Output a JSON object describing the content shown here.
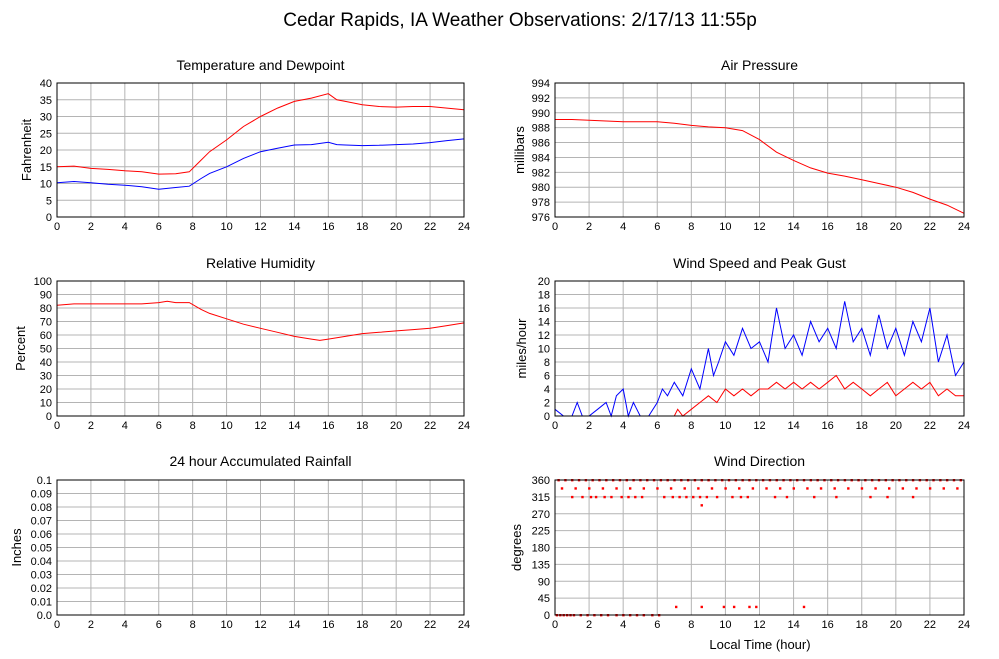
{
  "title": "Cedar Rapids, IA Weather Observations: 2/17/13 11:55p",
  "x_axis_label": "Local Time (hour)",
  "colors": {
    "red": "#ff0000",
    "blue": "#0000ff",
    "grid": "#b4b4b4",
    "frame": "#000000"
  },
  "chart_data": [
    {
      "id": "temperature",
      "type": "line",
      "title": "Temperature and Dewpoint",
      "xlabel": "",
      "ylabel": "Fahrenheit",
      "xlim": [
        0,
        24
      ],
      "ylim": [
        0,
        40
      ],
      "x_ticks": [
        0,
        2,
        4,
        6,
        8,
        10,
        12,
        14,
        16,
        18,
        20,
        22,
        24
      ],
      "y_ticks": [
        0,
        5,
        10,
        15,
        20,
        25,
        30,
        35,
        40
      ],
      "series": [
        {
          "color": "#ff0000",
          "x": [
            0,
            1,
            2,
            3,
            4,
            5,
            6,
            7,
            7.8,
            8.5,
            9,
            10,
            11,
            12,
            13,
            14,
            15,
            16,
            16.5,
            17,
            18,
            19,
            20,
            21,
            22,
            23,
            24
          ],
          "values": [
            15,
            15.2,
            14.5,
            14.2,
            13.8,
            13.5,
            12.8,
            12.9,
            13.5,
            17,
            19.5,
            23,
            27,
            30,
            32.5,
            34.5,
            35.5,
            36.8,
            35,
            34.5,
            33.5,
            33,
            32.8,
            33,
            33,
            32.5,
            32
          ]
        },
        {
          "color": "#0000ff",
          "x": [
            0,
            1,
            2,
            3,
            4,
            5,
            6,
            7,
            7.8,
            8.5,
            9,
            10,
            11,
            12,
            13,
            14,
            15,
            16,
            16.5,
            17,
            18,
            19,
            20,
            21,
            22,
            23,
            24
          ],
          "values": [
            10.2,
            10.6,
            10.2,
            9.8,
            9.5,
            9,
            8.3,
            8.8,
            9.2,
            11.5,
            13,
            15,
            17.5,
            19.5,
            20.5,
            21.5,
            21.6,
            22.3,
            21.6,
            21.5,
            21.3,
            21.4,
            21.6,
            21.8,
            22.2,
            22.8,
            23.3
          ]
        }
      ]
    },
    {
      "id": "pressure",
      "type": "line",
      "title": "Air Pressure",
      "xlabel": "",
      "ylabel": "millibars",
      "xlim": [
        0,
        24
      ],
      "ylim": [
        976,
        994
      ],
      "x_ticks": [
        0,
        2,
        4,
        6,
        8,
        10,
        12,
        14,
        16,
        18,
        20,
        22,
        24
      ],
      "y_ticks": [
        976,
        978,
        980,
        982,
        984,
        986,
        988,
        990,
        992,
        994
      ],
      "series": [
        {
          "color": "#ff0000",
          "x": [
            0,
            1,
            2,
            3,
            4,
            5,
            6,
            7,
            8,
            9,
            10,
            11,
            12,
            13,
            14,
            15,
            16,
            17,
            18,
            19,
            20,
            21,
            22,
            23,
            24
          ],
          "values": [
            989.1,
            989.1,
            989.0,
            988.9,
            988.8,
            988.8,
            988.8,
            988.6,
            988.3,
            988.1,
            988.0,
            987.6,
            986.4,
            984.7,
            983.6,
            982.6,
            981.9,
            981.5,
            981.0,
            980.5,
            980.0,
            979.3,
            978.4,
            977.6,
            976.5
          ]
        }
      ]
    },
    {
      "id": "humidity",
      "type": "line",
      "title": "Relative Humidity",
      "xlabel": "",
      "ylabel": "Percent",
      "xlim": [
        0,
        24
      ],
      "ylim": [
        0,
        100
      ],
      "x_ticks": [
        0,
        2,
        4,
        6,
        8,
        10,
        12,
        14,
        16,
        18,
        20,
        22,
        24
      ],
      "y_ticks": [
        0,
        10,
        20,
        30,
        40,
        50,
        60,
        70,
        80,
        90,
        100
      ],
      "series": [
        {
          "color": "#ff0000",
          "x": [
            0,
            1,
            2,
            3,
            4,
            5,
            6,
            6.5,
            7,
            7.8,
            8.5,
            9,
            10,
            11,
            12,
            13,
            14,
            15,
            15.5,
            16,
            17,
            18,
            19,
            20,
            21,
            22,
            23,
            24
          ],
          "values": [
            82,
            83,
            83,
            83,
            83,
            83,
            84,
            85,
            84,
            84,
            79,
            76,
            72,
            68,
            65,
            62,
            59,
            57,
            56,
            57,
            59,
            61,
            62,
            63,
            64,
            65,
            67,
            69
          ]
        }
      ]
    },
    {
      "id": "wind_speed",
      "type": "line",
      "title": "Wind Speed and Peak Gust",
      "xlabel": "",
      "ylabel": "miles/hour",
      "xlim": [
        0,
        24
      ],
      "ylim": [
        0,
        20
      ],
      "x_ticks": [
        0,
        2,
        4,
        6,
        8,
        10,
        12,
        14,
        16,
        18,
        20,
        22,
        24
      ],
      "y_ticks": [
        0,
        2,
        4,
        6,
        8,
        10,
        12,
        14,
        16,
        18,
        20
      ],
      "series": [
        {
          "color": "#0000ff",
          "x": [
            0,
            0.5,
            1,
            1.3,
            1.6,
            2,
            2.5,
            3,
            3.3,
            3.6,
            4,
            4.3,
            4.6,
            5,
            5.5,
            6,
            6.3,
            6.6,
            7,
            7.5,
            8,
            8.5,
            9,
            9.3,
            9.6,
            10,
            10.5,
            11,
            11.5,
            12,
            12.5,
            13,
            13.5,
            14,
            14.5,
            15,
            15.5,
            16,
            16.5,
            17,
            17.5,
            18,
            18.5,
            19,
            19.5,
            20,
            20.5,
            21,
            21.5,
            22,
            22.5,
            23,
            23.5,
            24
          ],
          "values": [
            1,
            0,
            0,
            2,
            0,
            0,
            1,
            2,
            0,
            3,
            4,
            0,
            2,
            0,
            0,
            2,
            4,
            3,
            5,
            3,
            7,
            4,
            10,
            6,
            8,
            11,
            9,
            13,
            10,
            11,
            8,
            16,
            10,
            12,
            9,
            14,
            11,
            13,
            10,
            17,
            11,
            13,
            9,
            15,
            10,
            13,
            9,
            14,
            11,
            16,
            8,
            12,
            6,
            8
          ]
        },
        {
          "color": "#ff0000",
          "x": [
            0,
            1,
            2,
            3,
            4,
            5,
            6,
            6.5,
            7,
            7.2,
            7.5,
            8,
            8.5,
            9,
            9.5,
            10,
            10.5,
            11,
            11.5,
            12,
            12.5,
            13,
            13.5,
            14,
            14.5,
            15,
            15.5,
            16,
            16.5,
            17,
            17.5,
            18,
            18.5,
            19,
            19.5,
            20,
            20.5,
            21,
            21.5,
            22,
            22.5,
            23,
            23.5,
            24
          ],
          "values": [
            0,
            0,
            0,
            0,
            0,
            0,
            0,
            0,
            0,
            1,
            0,
            1,
            2,
            3,
            2,
            4,
            3,
            4,
            3,
            4,
            4,
            5,
            4,
            5,
            4,
            5,
            4,
            5,
            6,
            4,
            5,
            4,
            3,
            4,
            5,
            3,
            4,
            5,
            4,
            5,
            3,
            4,
            3,
            3
          ]
        }
      ]
    },
    {
      "id": "rainfall",
      "type": "line",
      "title": "24 hour Accumulated Rainfall",
      "xlabel": "",
      "ylabel": "Inches",
      "xlim": [
        0,
        24
      ],
      "ylim": [
        0,
        0.1
      ],
      "x_ticks": [
        0,
        2,
        4,
        6,
        8,
        10,
        12,
        14,
        16,
        18,
        20,
        22,
        24
      ],
      "y_ticks": [
        "0.0",
        "0.01",
        "0.02",
        "0.03",
        "0.04",
        "0.05",
        "0.06",
        "0.07",
        "0.08",
        "0.09",
        "0.1"
      ],
      "series": [
        {
          "color": "#ff0000",
          "x": [
            0,
            24
          ],
          "values": [
            0,
            0
          ]
        }
      ]
    },
    {
      "id": "wind_direction",
      "type": "scatter",
      "title": "Wind Direction",
      "xlabel": "Local Time (hour)",
      "ylabel": "degrees",
      "xlim": [
        0,
        24
      ],
      "ylim": [
        0,
        360
      ],
      "x_ticks": [
        0,
        2,
        4,
        6,
        8,
        10,
        12,
        14,
        16,
        18,
        20,
        22,
        24
      ],
      "y_ticks": [
        0,
        45,
        90,
        135,
        180,
        225,
        270,
        315,
        360
      ],
      "series": [
        {
          "color": "#ff0000",
          "x": [
            0.1,
            0.3,
            0.5,
            0.7,
            0.9,
            1.1,
            1.5,
            1.9,
            2.3,
            2.7,
            3.1,
            3.6,
            4.0,
            4.4,
            4.8,
            5.2,
            5.7,
            6.1,
            0.2,
            0.6,
            1.0,
            1.4,
            1.8,
            2.2,
            2.6,
            3.0,
            3.4,
            3.8,
            4.2,
            4.6,
            5.0,
            5.4,
            5.8,
            6.2,
            6.6,
            7.0,
            7.4,
            7.8,
            8.2,
            8.6,
            9.0,
            9.4,
            9.8,
            10.2,
            10.6,
            11.0,
            11.4,
            11.8,
            12.2,
            12.6,
            13.0,
            13.4,
            13.8,
            14.2,
            14.6,
            15.0,
            15.4,
            15.8,
            16.2,
            16.6,
            17.0,
            17.4,
            17.8,
            18.2,
            18.6,
            19.0,
            19.4,
            19.8,
            20.2,
            20.6,
            21.0,
            21.4,
            21.8,
            22.2,
            22.6,
            23.0,
            23.4,
            23.8,
            0.4,
            1.2,
            2.0,
            2.8,
            3.6,
            4.4,
            5.2,
            6.0,
            6.8,
            7.6,
            8.4,
            9.2,
            10.0,
            10.8,
            11.6,
            12.4,
            13.2,
            14.0,
            14.8,
            15.6,
            16.4,
            17.2,
            18.0,
            18.8,
            19.6,
            20.4,
            21.2,
            22.0,
            22.8,
            23.6,
            1.0,
            1.6,
            2.1,
            2.4,
            2.9,
            3.3,
            3.9,
            4.3,
            4.7,
            5.1,
            6.4,
            6.9,
            7.3,
            7.7,
            8.1,
            8.5,
            8.9,
            9.5,
            10.4,
            10.9,
            11.3,
            12.9,
            13.6,
            15.2,
            16.5,
            18.5,
            19.5,
            21.0,
            8.6,
            7.1,
            8.6,
            9.9,
            10.5,
            11.4,
            11.8,
            14.6
          ],
          "values": [
            0,
            0,
            0,
            0,
            0,
            0,
            0,
            0,
            0,
            0,
            0,
            0,
            0,
            0,
            0,
            0,
            0,
            0,
            360,
            360,
            360,
            360,
            360,
            360,
            360,
            360,
            360,
            360,
            360,
            360,
            360,
            360,
            360,
            360,
            360,
            360,
            360,
            360,
            360,
            360,
            360,
            360,
            360,
            360,
            360,
            360,
            360,
            360,
            360,
            360,
            360,
            360,
            360,
            360,
            360,
            360,
            360,
            360,
            360,
            360,
            360,
            360,
            360,
            360,
            360,
            360,
            360,
            360,
            360,
            360,
            360,
            360,
            360,
            360,
            360,
            360,
            360,
            360,
            338,
            338,
            338,
            338,
            338,
            338,
            338,
            338,
            338,
            338,
            338,
            338,
            338,
            338,
            338,
            338,
            338,
            338,
            338,
            338,
            338,
            338,
            338,
            338,
            338,
            338,
            338,
            338,
            338,
            338,
            315,
            315,
            315,
            315,
            315,
            315,
            315,
            315,
            315,
            315,
            315,
            315,
            315,
            315,
            315,
            315,
            315,
            315,
            315,
            315,
            315,
            315,
            315,
            315,
            315,
            315,
            315,
            315,
            293,
            22,
            22,
            22,
            22,
            22,
            22,
            22
          ]
        }
      ]
    }
  ]
}
